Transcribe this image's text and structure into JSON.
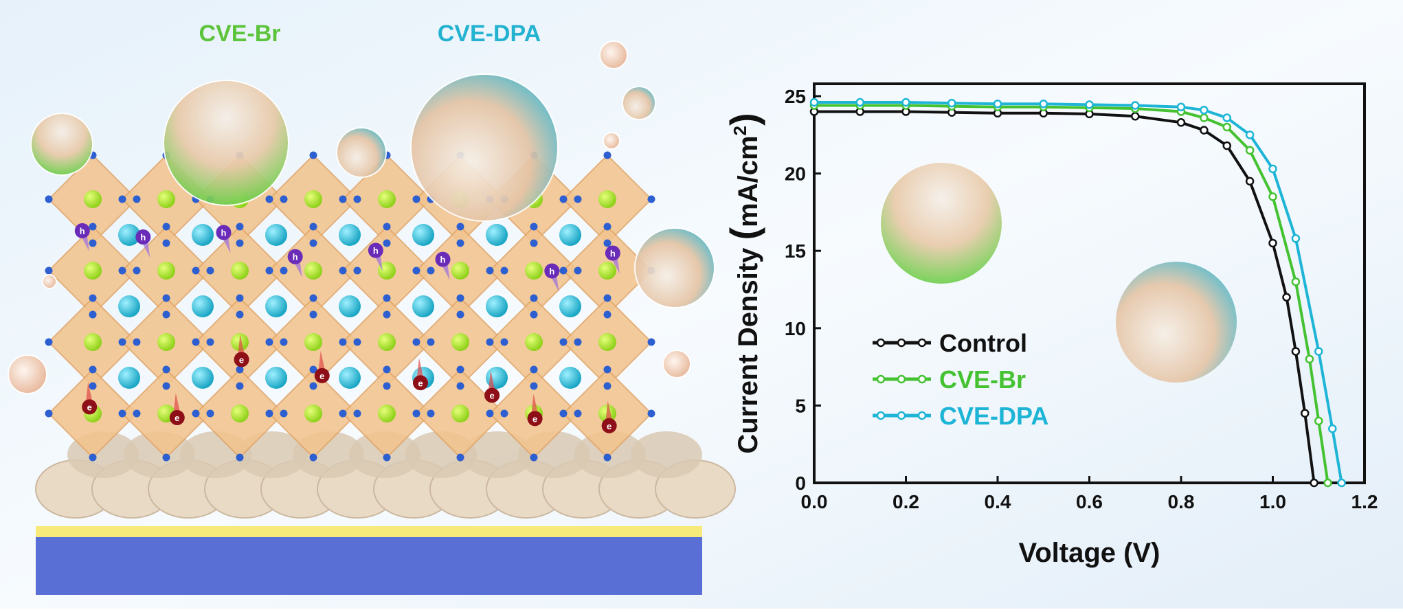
{
  "illustration": {
    "labels": [
      {
        "text": "CVE-Br",
        "color": "#5cc43a"
      },
      {
        "text": "CVE-DPA",
        "color": "#23b2cf"
      }
    ],
    "hole_label": "h",
    "electron_label": "e"
  },
  "chart_data": {
    "type": "line",
    "x_label": "Voltage (V)",
    "y_label": [
      "Current Density ",
      "(",
      "mA/cm",
      "2",
      ")"
    ],
    "xlim": [
      0,
      1.2
    ],
    "ylim": [
      0,
      25.8
    ],
    "xticks": [
      {
        "value": 0,
        "label": "0.0"
      },
      0.2,
      0.4,
      0.6,
      0.8,
      {
        "value": 1,
        "label": "1.0"
      },
      1.2
    ],
    "yticks": [
      0,
      5,
      10,
      15,
      20,
      25
    ],
    "legend": "lower left",
    "series": [
      {
        "name": "Control",
        "color": "#111111",
        "x": [
          0,
          0.1,
          0.2,
          0.3,
          0.4,
          0.5,
          0.6,
          0.7,
          0.8,
          0.85,
          0.9,
          0.95,
          1.0,
          1.03,
          1.05,
          1.07,
          1.09
        ],
        "values": [
          24.0,
          24.0,
          24.0,
          23.95,
          23.9,
          23.9,
          23.85,
          23.7,
          23.3,
          22.8,
          21.8,
          19.5,
          15.5,
          12,
          8.5,
          4.5,
          0
        ]
      },
      {
        "name": "CVE-Br",
        "color": "#44c232",
        "x": [
          0,
          0.1,
          0.2,
          0.3,
          0.4,
          0.5,
          0.6,
          0.7,
          0.8,
          0.85,
          0.9,
          0.95,
          1.0,
          1.05,
          1.08,
          1.1,
          1.12
        ],
        "values": [
          24.4,
          24.4,
          24.4,
          24.35,
          24.3,
          24.3,
          24.25,
          24.2,
          24.0,
          23.6,
          23.0,
          21.5,
          18.5,
          13,
          8,
          4,
          0
        ]
      },
      {
        "name": "CVE-DPA",
        "color": "#1db4d6",
        "x": [
          0,
          0.1,
          0.2,
          0.3,
          0.4,
          0.5,
          0.6,
          0.7,
          0.8,
          0.85,
          0.9,
          0.95,
          1.0,
          1.05,
          1.1,
          1.13,
          1.15
        ],
        "values": [
          24.6,
          24.6,
          24.6,
          24.55,
          24.5,
          24.5,
          24.45,
          24.4,
          24.3,
          24.1,
          23.6,
          22.5,
          20.3,
          15.8,
          8.5,
          3.5,
          0
        ]
      }
    ]
  }
}
